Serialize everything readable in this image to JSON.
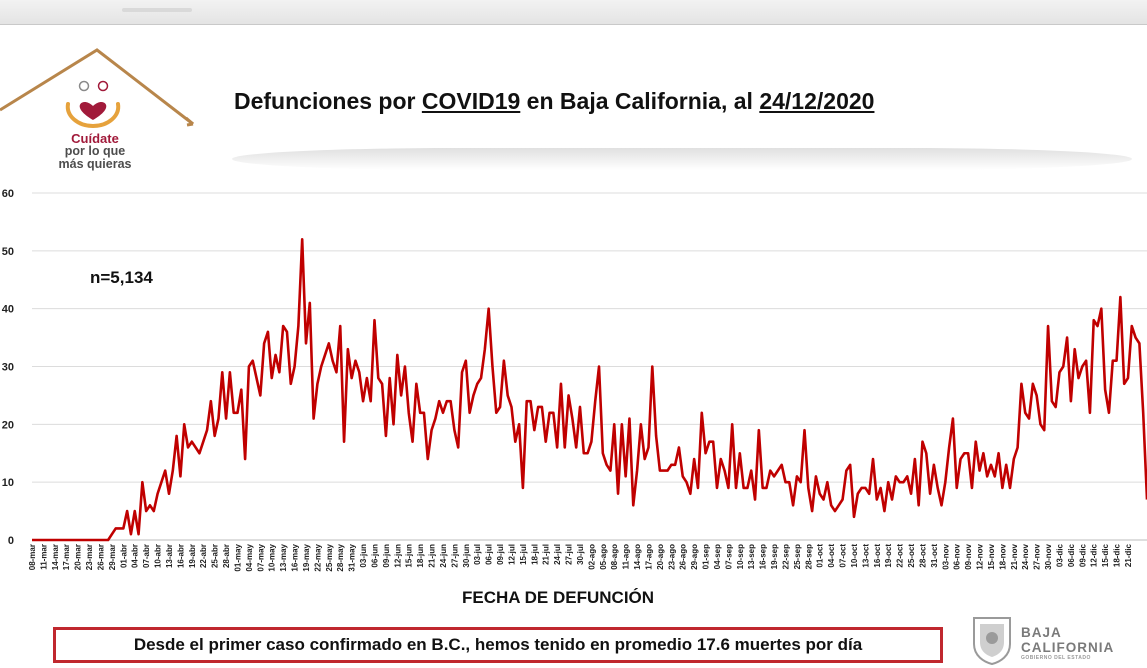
{
  "title": {
    "prefix": "Defunciones por ",
    "keyword": "COVID19",
    "middle": " en Baja California, al ",
    "date": "24/12/2020"
  },
  "logo": {
    "line1": "Cuídate",
    "line2": "por lo que",
    "line3": "más quieras"
  },
  "annotation": "n=5,134",
  "footer": "Desde el primer caso confirmado en B.C., hemos tenido en promedio 17.6 muertes por día",
  "brand": {
    "line1": "BAJA",
    "line2": "CALIFORNIA",
    "line3": "GOBIERNO DEL ESTADO"
  },
  "colors": {
    "line": "#c00000",
    "accent": "#a11a3a",
    "frame": "#b8864b"
  },
  "chart_data": {
    "type": "line",
    "title": "Defunciones por COVID19 en Baja California, al 24/12/2020",
    "xlabel": "FECHA DE DEFUNCIÓN",
    "ylabel": "",
    "ylim": [
      0,
      60
    ],
    "yticks": [
      0,
      10,
      20,
      30,
      40,
      50,
      60
    ],
    "grid": true,
    "x_start": "08-mar",
    "x_end": "24-dic",
    "xtick_labels": [
      "08-mar",
      "11-mar",
      "14-mar",
      "17-mar",
      "20-mar",
      "23-mar",
      "26-mar",
      "29-mar",
      "01-abr",
      "04-abr",
      "07-abr",
      "10-abr",
      "13-abr",
      "16-abr",
      "19-abr",
      "22-abr",
      "25-abr",
      "28-abr",
      "01-may",
      "04-may",
      "07-may",
      "10-may",
      "13-may",
      "16-may",
      "19-may",
      "22-may",
      "25-may",
      "28-may",
      "31-may",
      "03-jun",
      "06-jun",
      "09-jun",
      "12-jun",
      "15-jun",
      "18-jun",
      "21-jun",
      "24-jun",
      "27-jun",
      "30-jun",
      "03-jul",
      "06-jul",
      "09-jul",
      "12-jul",
      "15-jul",
      "18-jul",
      "21-jul",
      "24-jul",
      "27-jul",
      "30-jul",
      "02-ago",
      "05-ago",
      "08-ago",
      "11-ago",
      "14-ago",
      "17-ago",
      "20-ago",
      "23-ago",
      "26-ago",
      "29-ago",
      "01-sep",
      "04-sep",
      "07-sep",
      "10-sep",
      "13-sep",
      "16-sep",
      "19-sep",
      "22-sep",
      "25-sep",
      "28-sep",
      "01-oct",
      "04-oct",
      "07-oct",
      "10-oct",
      "13-oct",
      "16-oct",
      "19-oct",
      "22-oct",
      "25-oct",
      "28-oct",
      "31-oct",
      "03-nov",
      "06-nov",
      "09-nov",
      "12-nov",
      "15-nov",
      "18-nov",
      "21-nov",
      "24-nov",
      "27-nov",
      "30-nov",
      "03-dic",
      "06-dic",
      "09-dic",
      "12-dic",
      "15-dic",
      "18-dic",
      "21-dic"
    ],
    "series": [
      {
        "name": "",
        "values": [
          0,
          0,
          0,
          0,
          0,
          0,
          0,
          0,
          0,
          0,
          0,
          0,
          0,
          0,
          0,
          0,
          0,
          0,
          0,
          0,
          0,
          1,
          2,
          2,
          2,
          5,
          1,
          5,
          1,
          10,
          5,
          6,
          5,
          8,
          10,
          12,
          8,
          12,
          18,
          11,
          20,
          16,
          17,
          16,
          15,
          17,
          19,
          24,
          18,
          21,
          29,
          21,
          29,
          22,
          22,
          26,
          14,
          30,
          31,
          28,
          25,
          34,
          36,
          28,
          32,
          29,
          37,
          36,
          27,
          30,
          37,
          52,
          34,
          41,
          21,
          27,
          30,
          32,
          34,
          31,
          29,
          37,
          17,
          33,
          28,
          31,
          29,
          24,
          28,
          24,
          38,
          28,
          27,
          18,
          28,
          20,
          32,
          25,
          30,
          22,
          17,
          27,
          22,
          22,
          14,
          19,
          21,
          24,
          22,
          24,
          24,
          19,
          16,
          29,
          31,
          22,
          25,
          27,
          28,
          33,
          40,
          30,
          22,
          23,
          31,
          25,
          23,
          17,
          20,
          9,
          24,
          24,
          19,
          23,
          23,
          17,
          22,
          22,
          16,
          27,
          16,
          25,
          21,
          16,
          23,
          15,
          15,
          17,
          24,
          30,
          15,
          13,
          12,
          20,
          8,
          20,
          11,
          21,
          6,
          12,
          20,
          14,
          16,
          30,
          18,
          12,
          12,
          12,
          13,
          13,
          16,
          11,
          10,
          8,
          14,
          9,
          22,
          15,
          17,
          17,
          9,
          14,
          12,
          9,
          20,
          9,
          15,
          9,
          9,
          12,
          7,
          19,
          9,
          9,
          12,
          11,
          12,
          13,
          10,
          10,
          6,
          11,
          10,
          19,
          9,
          5,
          11,
          8,
          7,
          10,
          6,
          5,
          6,
          7,
          12,
          13,
          4,
          8,
          9,
          9,
          8,
          14,
          7,
          9,
          5,
          10,
          7,
          11,
          10,
          10,
          11,
          8,
          14,
          6,
          17,
          15,
          8,
          13,
          9,
          6,
          10,
          16,
          21,
          9,
          14,
          15,
          15,
          9,
          17,
          12,
          15,
          11,
          13,
          11,
          15,
          9,
          13,
          9,
          14,
          16,
          27,
          22,
          21,
          27,
          25,
          20,
          19,
          37,
          24,
          23,
          29,
          30,
          35,
          24,
          33,
          28,
          30,
          31,
          22,
          38,
          37,
          40,
          26,
          22,
          31,
          31,
          42,
          27,
          28,
          37,
          35,
          34,
          22,
          7
        ]
      }
    ]
  }
}
